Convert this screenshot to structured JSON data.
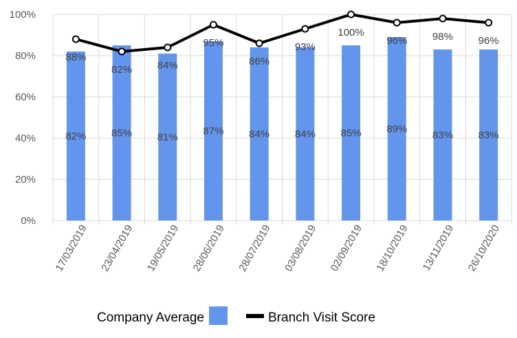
{
  "chart_data": {
    "type": "bar",
    "categories": [
      "17/03/2019",
      "23/04/2019",
      "19/05/2019",
      "28/06/2019",
      "28/07/2019",
      "03/08/2019",
      "02/09/2019",
      "18/10/2019",
      "13/11/2019",
      "26/10/2020"
    ],
    "series": [
      {
        "name": "Company Average",
        "type": "bar",
        "color": "#6495ED",
        "values": [
          82,
          85,
          81,
          87,
          84,
          84,
          85,
          89,
          83,
          83
        ],
        "labels": [
          "82%",
          "85%",
          "81%",
          "87%",
          "84%",
          "84%",
          "85%",
          "89%",
          "83%",
          "83%"
        ]
      },
      {
        "name": "Branch Visit Score",
        "type": "line",
        "color": "#000000",
        "values": [
          88,
          82,
          84,
          95,
          86,
          93,
          100,
          96,
          98,
          96
        ],
        "labels": [
          "88%",
          "82%",
          "84%",
          "95%",
          "86%",
          "93%",
          "100%",
          "96%",
          "98%",
          "96%"
        ]
      }
    ],
    "y_ticks": [
      "0%",
      "20%",
      "40%",
      "60%",
      "80%",
      "100%"
    ],
    "ylim": [
      0,
      100
    ],
    "grid": true,
    "legend": "bottom"
  }
}
